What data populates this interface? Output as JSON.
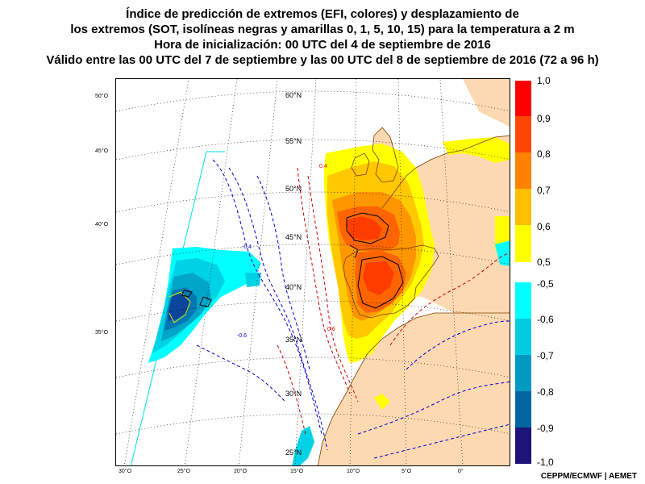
{
  "title": {
    "line1": "Índice de predicción de extremos (EFI, colores) y desplazamiento de",
    "line2": "los extremos (SOT, isolíneas negras y amarillas 0, 1, 5, 10, 15) para la temperatura a 2 m",
    "line3": "Hora de inicialización: 00 UTC del 4 de septiembre de 2016",
    "line4": "Válido entre las 00 UTC del 7 de septiembre y las 00 UTC del 8 de septiembre de 2016 (72 a 96 h)"
  },
  "map": {
    "lat_labels": [
      "60°N",
      "55°N",
      "50°N",
      "45°N",
      "40°N",
      "35°N",
      "30°N",
      "25°N"
    ],
    "lat_left_labels": [
      "50°O",
      "45°O",
      "40°O",
      "35°O"
    ],
    "lon_labels": [
      "30°O",
      "25°O",
      "20°O",
      "15°O",
      "10°O",
      "5°O",
      "0°"
    ],
    "contour_labels": [
      "-0.4",
      "0.4",
      "0.6",
      "-0.6"
    ],
    "colors": {
      "land": "#fcd9b1",
      "sea": "#ffffff",
      "efi_05": "#ffff00",
      "efi_06": "#ffc800",
      "efi_07": "#ff9600",
      "efi_08": "#ff6400",
      "efi_09": "#ff1e00",
      "efi_neg05": "#00ffff",
      "efi_neg06": "#00d2e6",
      "efi_neg07": "#00a5c8",
      "efi_neg08": "#0078b4",
      "efi_neg09": "#0a469b",
      "efi_neg10": "#141478",
      "iso_red": "#d00000",
      "iso_blue": "#0000d0"
    }
  },
  "colorbar": {
    "labels": [
      "1,0",
      "0,9",
      "0,8",
      "0,7",
      "0,6",
      "0,5",
      "-0,5",
      "-0,6",
      "-0,7",
      "-0,8",
      "-0,9",
      "-1,0"
    ],
    "positive": [
      {
        "range": "0,9-1,0",
        "color": "#ff0000"
      },
      {
        "range": "0,8-0,9",
        "color": "#ff4600"
      },
      {
        "range": "0,7-0,8",
        "color": "#ff8200"
      },
      {
        "range": "0,6-0,7",
        "color": "#ffbe00"
      },
      {
        "range": "0,5-0,6",
        "color": "#ffff00"
      }
    ],
    "negative": [
      {
        "range": "-0,5--0,6",
        "color": "#00ffff"
      },
      {
        "range": "-0,6--0,7",
        "color": "#00cce0"
      },
      {
        "range": "-0,7--0,8",
        "color": "#0099c0"
      },
      {
        "range": "-0,8--0,9",
        "color": "#0066a0"
      },
      {
        "range": "-0,9--1,0",
        "color": "#143c8c"
      },
      {
        "range": "-1,0",
        "color": "#1e1478"
      }
    ]
  },
  "credit": "CEPPM/ECMWF | AEMET"
}
